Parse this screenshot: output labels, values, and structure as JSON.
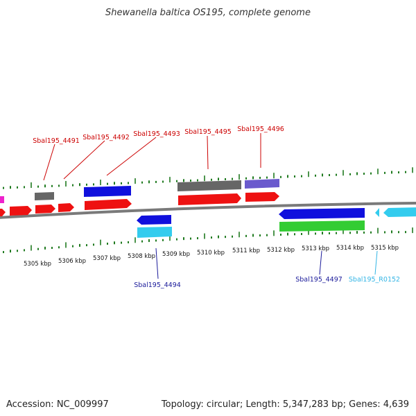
{
  "title": "Shewanella baltica OS195, complete genome",
  "footer": {
    "accession": "Accession: NC_009997",
    "topology": "Topology: circular; Length: 5,347,283 bp; Genes: 4,639"
  },
  "colors": {
    "backbone": "#7a7a7a",
    "tick": "#1f7a1f",
    "label_top": "#cc0000",
    "label_bottom_blue": "#1a1a9a",
    "label_bottom_cyan": "#33b5e5",
    "red": "#ee1111",
    "gray": "#666666",
    "blue": "#1010dd",
    "cyan": "#33ccee",
    "purple": "#6a5acd",
    "green": "#33cc33",
    "magenta": "#ee22cc"
  },
  "kbp_labels": [
    "5305 kbp",
    "5306 kbp",
    "5307 kbp",
    "5308 kbp",
    "5309 kbp",
    "5310 kbp",
    "5311 kbp",
    "5312 kbp",
    "5313 kbp",
    "5314 kbp",
    "5315 kbp"
  ],
  "gene_labels_top": [
    "Sbal195_4491",
    "Sbal195_4492",
    "Sbal195_4493",
    "Sbal195_4495",
    "Sbal195_4496"
  ],
  "gene_labels_bottom": [
    "Sbal195_4494",
    "Sbal195_4497",
    "Sbal195_R0152"
  ]
}
